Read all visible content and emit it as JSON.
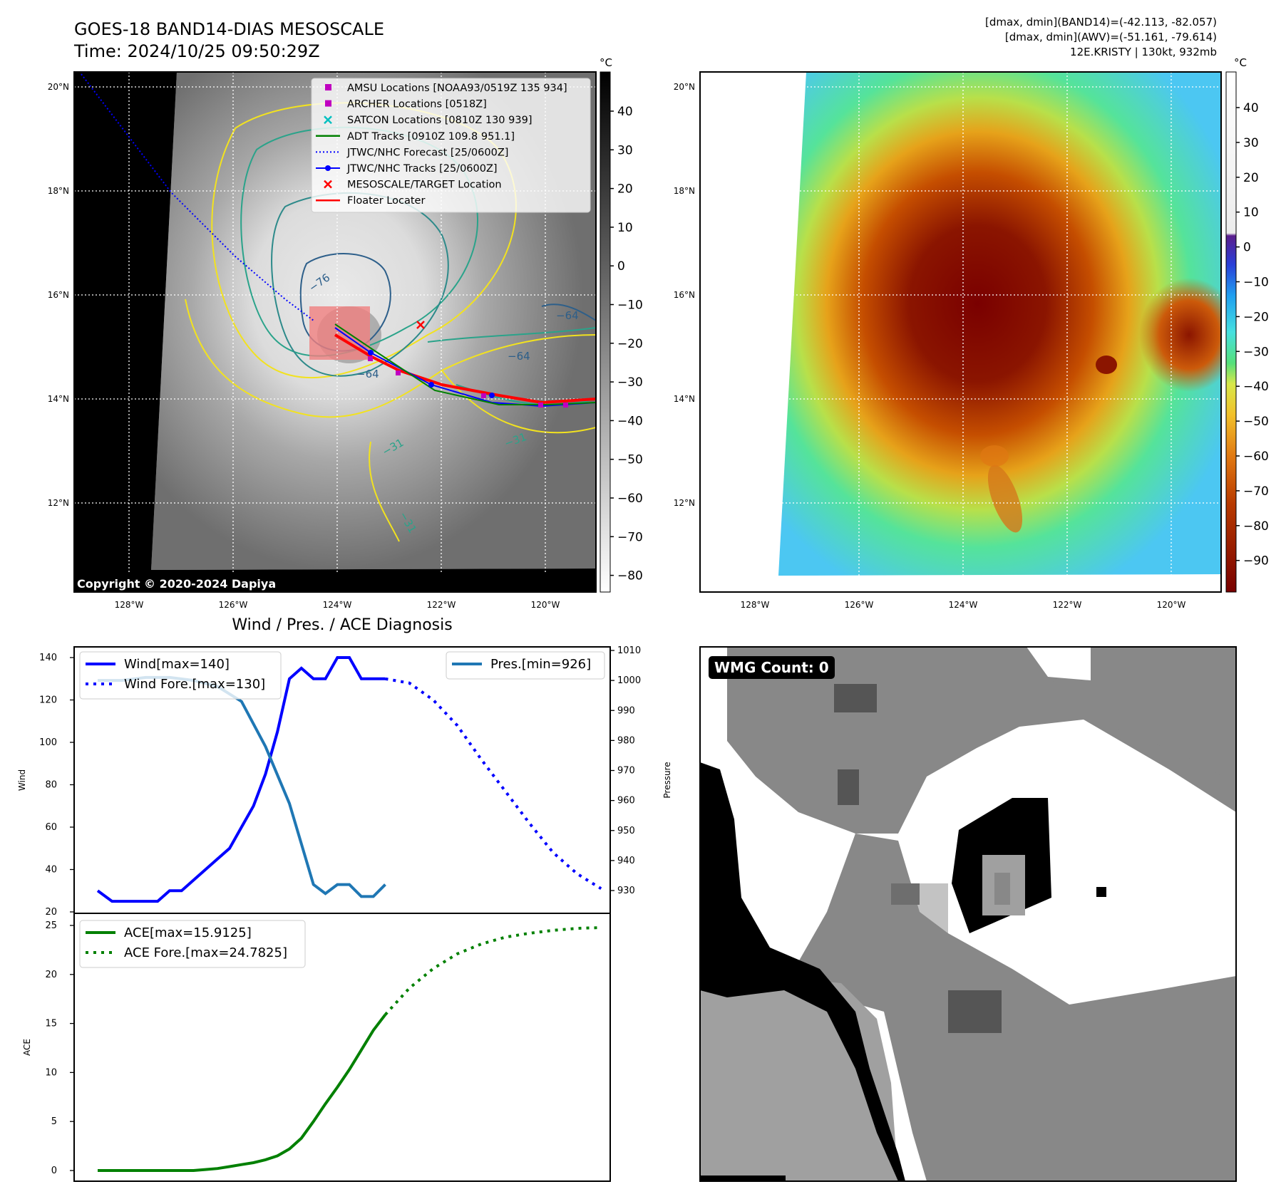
{
  "header": {
    "title_line1": "GOES-18 BAND14-DIAS MESOSCALE",
    "title_line2": "Time: 2024/10/25 09:50:29Z",
    "info_line1": "[dmax, dmin](BAND14)=(-42.113, -82.057)",
    "info_line2": "[dmax, dmin](AWV)=(-51.161, -79.614)",
    "info_line3": "12E.KRISTY | 130kt, 932mb"
  },
  "copyright": "Copyright © 2020-2024 Dapiya",
  "wmg_count": "WMG Count: 0",
  "colors": {
    "wind": "#0000ff",
    "pressure": "#1f77b4",
    "ace": "#008000",
    "contour_yellow": "#f2e21f",
    "contour_teal": "#2aa38a",
    "contour_blue": "#2d5f8a"
  },
  "map_left": {
    "colorbar_unit": "°C",
    "colorbar_ticks": [
      "40",
      "30",
      "20",
      "10",
      "0",
      "−10",
      "−20",
      "−30",
      "−40",
      "−50",
      "−60",
      "−70",
      "−80"
    ],
    "lat_labels": [
      "20°N",
      "18°N",
      "16°N",
      "14°N",
      "12°N"
    ],
    "lon_labels": [
      "128°W",
      "126°W",
      "124°W",
      "122°W",
      "120°W"
    ],
    "contour_labels": [
      "−76",
      "−64",
      "−64",
      "−64",
      "−31",
      "−31",
      "−31"
    ],
    "legend": [
      {
        "label": "AMSU Locations [NOAA93/0519Z 135 934]",
        "marker": "square",
        "color": "#c000c0"
      },
      {
        "label": "ARCHER Locations [0518Z]",
        "marker": "square",
        "color": "#c000c0"
      },
      {
        "label": "SATCON Locations [0810Z 130 939]",
        "marker": "x",
        "color": "#00c0c0"
      },
      {
        "label": "ADT Tracks [0910Z 109.8 951.1]",
        "marker": "line",
        "color": "#008000"
      },
      {
        "label": "JTWC/NHC Forecast [25/0600Z]",
        "marker": "dotted",
        "color": "#0000ff"
      },
      {
        "label": "JTWC/NHC Tracks [25/0600Z]",
        "marker": "line-dot",
        "color": "#0000ff"
      },
      {
        "label": "MESOSCALE/TARGET Location",
        "marker": "x",
        "color": "#ff0000"
      },
      {
        "label": "Floater Locater",
        "marker": "line",
        "color": "#ff0000"
      }
    ]
  },
  "map_right": {
    "colorbar_unit": "°C",
    "colorbar_ticks": [
      "40",
      "30",
      "20",
      "10",
      "0",
      "−10",
      "−20",
      "−30",
      "−40",
      "−50",
      "−60",
      "−70",
      "−80",
      "−90"
    ],
    "lat_labels": [
      "20°N",
      "18°N",
      "16°N",
      "14°N",
      "12°N"
    ],
    "lon_labels": [
      "128°W",
      "126°W",
      "124°W",
      "122°W",
      "120°W"
    ]
  },
  "chart_data": [
    {
      "type": "line",
      "title": "Wind / Pres. / ACE Diagnosis",
      "ylabel": "Wind",
      "ylabel_right": "Pressure",
      "ylim": [
        20,
        145
      ],
      "ylim_right": [
        922,
        1012
      ],
      "xlim": [
        0,
        21.5
      ],
      "yticks": [
        20,
        40,
        60,
        80,
        100,
        120,
        140
      ],
      "yticks_right": [
        930,
        940,
        950,
        960,
        970,
        980,
        990,
        1000,
        1010
      ],
      "series": [
        {
          "name": "Wind[max=140]",
          "style": "solid",
          "color": "#0000ff",
          "x": [
            0,
            0.6,
            1,
            1.5,
            2,
            2.5,
            3,
            3.5,
            4,
            4.5,
            5,
            5.5,
            6,
            6.5,
            7,
            7.5,
            8,
            8.5,
            9,
            9.5,
            10,
            10.5,
            11,
            11.5,
            12
          ],
          "values": [
            30,
            25,
            25,
            25,
            25,
            25,
            30,
            30,
            35,
            40,
            45,
            50,
            60,
            70,
            85,
            105,
            130,
            135,
            130,
            130,
            140,
            140,
            130,
            130,
            130
          ]
        },
        {
          "name": "Wind Fore.[max=130]",
          "style": "dotted",
          "color": "#0000ff",
          "x": [
            12,
            13,
            14,
            15,
            16,
            17,
            18,
            19,
            20,
            21
          ],
          "values": [
            130,
            128,
            120,
            108,
            92,
            77,
            62,
            48,
            38,
            31
          ]
        },
        {
          "name": "Pres.[min=926]",
          "style": "solid",
          "color": "#1f77b4",
          "axis": "right",
          "x": [
            0,
            1,
            2,
            3,
            4,
            5,
            6,
            7,
            8,
            9,
            9.5,
            10,
            10.5,
            11,
            11.5,
            12
          ],
          "values": [
            1000,
            1000,
            1001,
            1001,
            1000,
            998,
            993,
            978,
            959,
            932,
            929,
            932,
            932,
            928,
            928,
            932
          ]
        }
      ]
    },
    {
      "type": "line",
      "ylabel": "ACE",
      "ylim": [
        -1,
        25.5
      ],
      "xlim": [
        0,
        21.5
      ],
      "yticks": [
        0,
        5,
        10,
        15,
        20,
        25
      ],
      "series": [
        {
          "name": "ACE[max=15.9125]",
          "style": "solid",
          "color": "#008000",
          "x": [
            0,
            1,
            2,
            3,
            4,
            4.5,
            5,
            5.5,
            6,
            6.5,
            7,
            7.5,
            8,
            8.5,
            9,
            9.5,
            10,
            10.5,
            11,
            11.5,
            12
          ],
          "values": [
            0,
            0,
            0,
            0,
            0,
            0.1,
            0.2,
            0.4,
            0.6,
            0.8,
            1.1,
            1.5,
            2.2,
            3.3,
            5.0,
            6.8,
            8.5,
            10.3,
            12.3,
            14.3,
            15.9
          ]
        },
        {
          "name": "ACE Fore.[max=24.7825]",
          "style": "dotted",
          "color": "#008000",
          "x": [
            12,
            13,
            14,
            15,
            16,
            17,
            18,
            19,
            20,
            21
          ],
          "values": [
            15.9,
            18.6,
            20.6,
            22.1,
            23.1,
            23.8,
            24.2,
            24.5,
            24.7,
            24.78
          ]
        }
      ]
    }
  ]
}
